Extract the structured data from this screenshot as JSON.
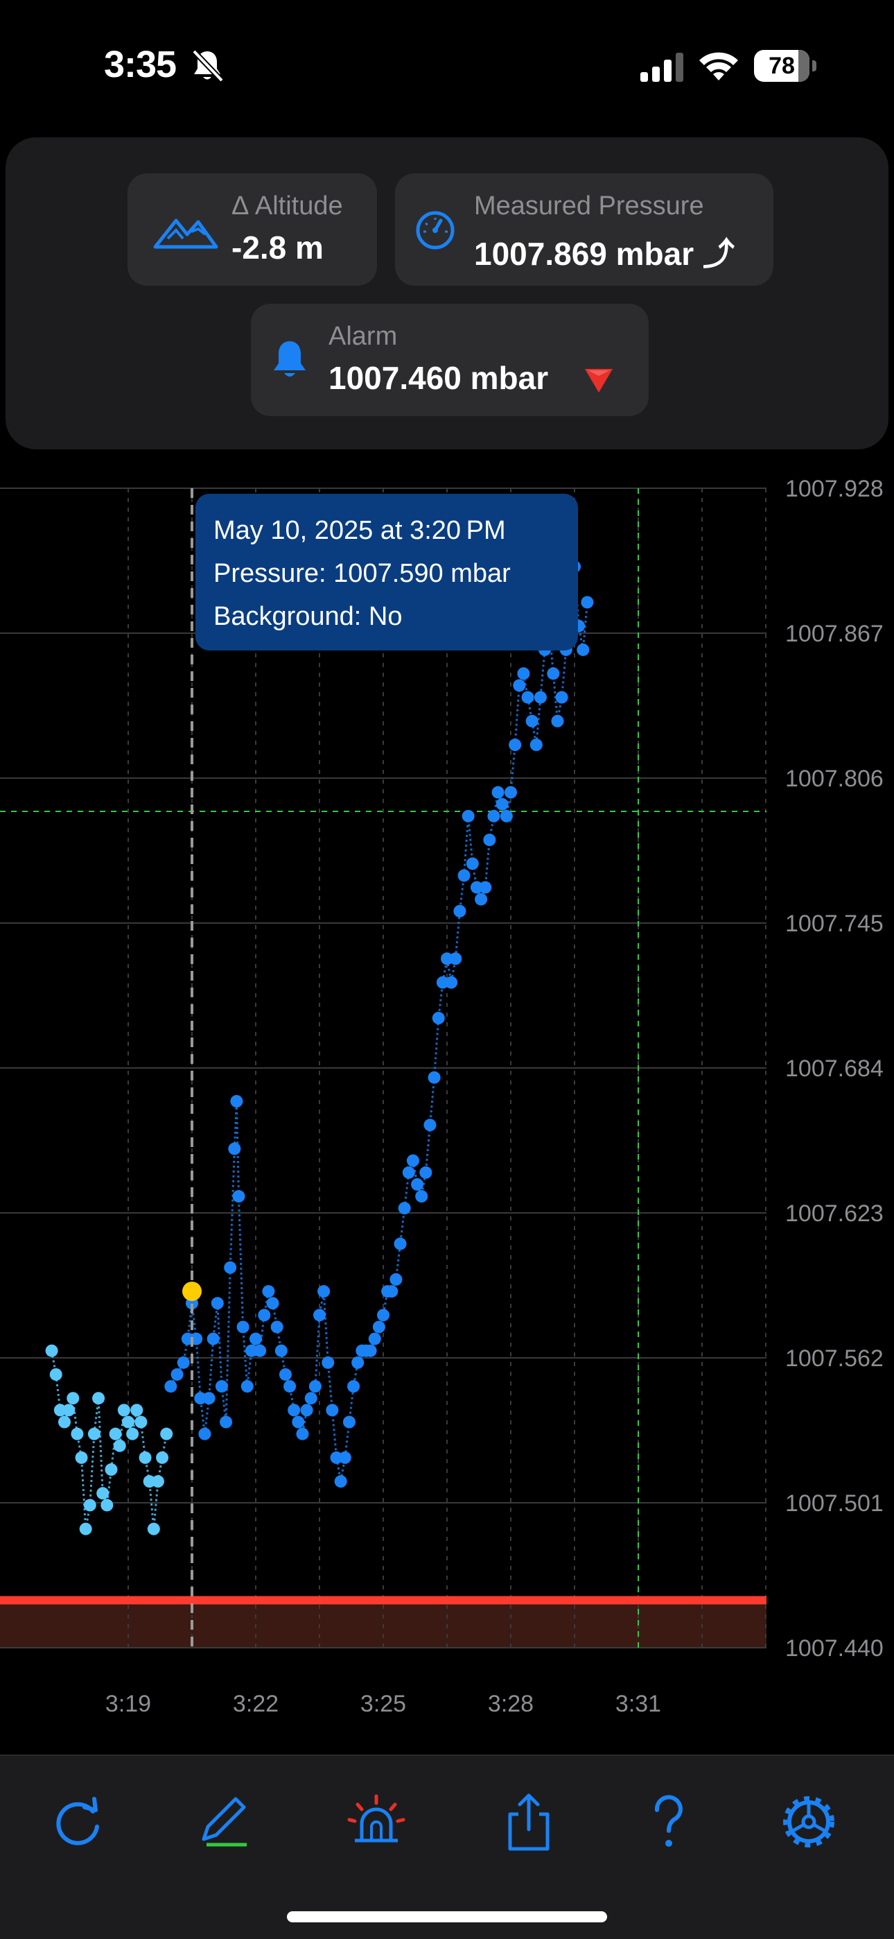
{
  "status": {
    "time": "3:35",
    "battery": "78"
  },
  "cards": {
    "altitude": {
      "label": "Δ Altitude",
      "value": "-2.8 m"
    },
    "pressure": {
      "label": "Measured Pressure",
      "value": "1007.869 mbar ⤴"
    },
    "alarm": {
      "label": "Alarm",
      "value": "1007.460 mbar"
    }
  },
  "tooltip": {
    "line1": "May 10, 2025 at 3:20 PM",
    "line2": "Pressure: 1007.590 mbar",
    "line3": "Background: No"
  },
  "chart_data": {
    "type": "scatter",
    "ylim": [
      1007.44,
      1007.928
    ],
    "y_ticks": [
      "1007.928",
      "1007.867",
      "1007.806",
      "1007.745",
      "1007.684",
      "1007.623",
      "1007.562",
      "1007.501",
      "1007.440"
    ],
    "x_ticks": [
      "3:19",
      "3:22",
      "3:25",
      "3:28",
      "3:31"
    ],
    "x_unit": "minutes",
    "xlim": [
      17.2,
      34.6
    ],
    "alarm_level": 1007.46,
    "reference_level": 1007.792,
    "selected_time": 20.5,
    "selected_value": 1007.59,
    "series": [
      {
        "color": "#5ac8fa",
        "points": [
          [
            17.2,
            1007.565
          ],
          [
            17.3,
            1007.555
          ],
          [
            17.4,
            1007.54
          ],
          [
            17.5,
            1007.535
          ],
          [
            17.6,
            1007.54
          ],
          [
            17.7,
            1007.545
          ],
          [
            17.8,
            1007.53
          ],
          [
            17.9,
            1007.52
          ],
          [
            18.0,
            1007.49
          ],
          [
            18.1,
            1007.5
          ],
          [
            18.2,
            1007.53
          ],
          [
            18.3,
            1007.545
          ],
          [
            18.4,
            1007.505
          ],
          [
            18.5,
            1007.5
          ],
          [
            18.6,
            1007.515
          ],
          [
            18.7,
            1007.53
          ],
          [
            18.8,
            1007.525
          ],
          [
            18.9,
            1007.54
          ],
          [
            19.0,
            1007.535
          ],
          [
            19.1,
            1007.53
          ],
          [
            19.2,
            1007.54
          ],
          [
            19.3,
            1007.535
          ],
          [
            19.4,
            1007.52
          ],
          [
            19.5,
            1007.51
          ],
          [
            19.6,
            1007.49
          ],
          [
            19.7,
            1007.51
          ],
          [
            19.8,
            1007.52
          ],
          [
            19.9,
            1007.53
          ]
        ]
      },
      {
        "color": "#1a82f4",
        "points": [
          [
            20.0,
            1007.55
          ],
          [
            20.15,
            1007.555
          ],
          [
            20.3,
            1007.56
          ],
          [
            20.4,
            1007.57
          ],
          [
            20.5,
            1007.585
          ],
          [
            20.6,
            1007.57
          ],
          [
            20.7,
            1007.545
          ],
          [
            20.8,
            1007.53
          ],
          [
            20.9,
            1007.545
          ],
          [
            21.0,
            1007.57
          ],
          [
            21.1,
            1007.585
          ],
          [
            21.2,
            1007.55
          ],
          [
            21.3,
            1007.535
          ],
          [
            21.4,
            1007.6
          ],
          [
            21.5,
            1007.65
          ],
          [
            21.55,
            1007.67
          ],
          [
            21.6,
            1007.63
          ],
          [
            21.7,
            1007.575
          ],
          [
            21.8,
            1007.55
          ],
          [
            21.9,
            1007.565
          ],
          [
            22.0,
            1007.57
          ],
          [
            22.1,
            1007.565
          ],
          [
            22.2,
            1007.58
          ],
          [
            22.3,
            1007.59
          ],
          [
            22.4,
            1007.585
          ],
          [
            22.5,
            1007.575
          ],
          [
            22.6,
            1007.565
          ],
          [
            22.7,
            1007.555
          ],
          [
            22.8,
            1007.55
          ],
          [
            22.9,
            1007.54
          ],
          [
            23.0,
            1007.535
          ],
          [
            23.1,
            1007.53
          ],
          [
            23.2,
            1007.54
          ],
          [
            23.3,
            1007.545
          ],
          [
            23.4,
            1007.55
          ],
          [
            23.5,
            1007.58
          ],
          [
            23.6,
            1007.59
          ],
          [
            23.7,
            1007.56
          ],
          [
            23.8,
            1007.54
          ],
          [
            23.9,
            1007.52
          ],
          [
            24.0,
            1007.51
          ],
          [
            24.1,
            1007.52
          ],
          [
            24.2,
            1007.535
          ],
          [
            24.3,
            1007.55
          ],
          [
            24.4,
            1007.56
          ],
          [
            24.5,
            1007.565
          ],
          [
            24.6,
            1007.565
          ],
          [
            24.7,
            1007.565
          ],
          [
            24.8,
            1007.57
          ],
          [
            24.9,
            1007.575
          ],
          [
            25.0,
            1007.58
          ],
          [
            25.1,
            1007.59
          ],
          [
            25.2,
            1007.59
          ],
          [
            25.3,
            1007.595
          ],
          [
            25.4,
            1007.61
          ],
          [
            25.5,
            1007.625
          ],
          [
            25.6,
            1007.64
          ],
          [
            25.7,
            1007.645
          ],
          [
            25.8,
            1007.635
          ],
          [
            25.9,
            1007.63
          ],
          [
            26.0,
            1007.64
          ],
          [
            26.1,
            1007.66
          ],
          [
            26.2,
            1007.68
          ],
          [
            26.3,
            1007.705
          ],
          [
            26.4,
            1007.72
          ],
          [
            26.5,
            1007.73
          ],
          [
            26.6,
            1007.72
          ],
          [
            26.7,
            1007.73
          ],
          [
            26.8,
            1007.75
          ],
          [
            26.9,
            1007.765
          ],
          [
            27.0,
            1007.79
          ],
          [
            27.1,
            1007.77
          ],
          [
            27.2,
            1007.76
          ],
          [
            27.3,
            1007.755
          ],
          [
            27.4,
            1007.76
          ],
          [
            27.5,
            1007.78
          ],
          [
            27.6,
            1007.79
          ],
          [
            27.7,
            1007.8
          ],
          [
            27.8,
            1007.795
          ],
          [
            27.9,
            1007.79
          ],
          [
            28.0,
            1007.8
          ],
          [
            28.1,
            1007.82
          ],
          [
            28.2,
            1007.845
          ],
          [
            28.3,
            1007.85
          ],
          [
            28.4,
            1007.84
          ],
          [
            28.5,
            1007.83
          ],
          [
            28.6,
            1007.82
          ],
          [
            28.7,
            1007.84
          ],
          [
            28.8,
            1007.86
          ],
          [
            28.9,
            1007.87
          ],
          [
            29.0,
            1007.85
          ],
          [
            29.1,
            1007.83
          ],
          [
            29.2,
            1007.84
          ],
          [
            29.3,
            1007.86
          ],
          [
            29.4,
            1007.88
          ],
          [
            29.5,
            1007.895
          ],
          [
            29.6,
            1007.87
          ],
          [
            29.7,
            1007.86
          ],
          [
            29.8,
            1007.88
          ]
        ]
      }
    ]
  }
}
